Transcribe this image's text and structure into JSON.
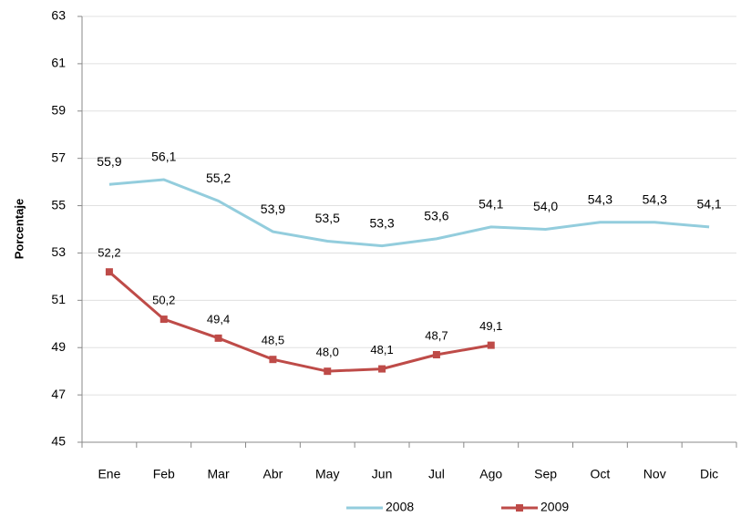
{
  "chart_data": {
    "type": "line",
    "y_label": "Porcentaje",
    "categories": [
      "Ene",
      "Feb",
      "Mar",
      "Abr",
      "May",
      "Jun",
      "Jul",
      "Ago",
      "Sep",
      "Oct",
      "Nov",
      "Dic"
    ],
    "series": [
      {
        "name": "2008",
        "color": "#93cddd",
        "marker": "none",
        "values": [
          55.9,
          56.1,
          55.2,
          53.9,
          53.5,
          53.3,
          53.6,
          54.1,
          54.0,
          54.3,
          54.3,
          54.1
        ],
        "value_labels": [
          "55,9",
          "56,1",
          "55,2",
          "53,9",
          "53,5",
          "53,3",
          "53,6",
          "54,1",
          "54,0",
          "54,3",
          "54,3",
          "54,1"
        ]
      },
      {
        "name": "2009",
        "color": "#be4b48",
        "marker": "square",
        "values": [
          52.2,
          50.2,
          49.4,
          48.5,
          48.0,
          48.1,
          48.7,
          49.1,
          null,
          null,
          null,
          null
        ],
        "value_labels": [
          "52,2",
          "50,2",
          "49,4",
          "48,5",
          "48,0",
          "48,1",
          "48,7",
          "49,1",
          null,
          null,
          null,
          null
        ]
      }
    ],
    "ylim": [
      45,
      63
    ],
    "yticks": [
      45,
      47,
      49,
      51,
      53,
      55,
      57,
      59,
      61,
      63
    ],
    "grid": true,
    "legend": "bottom"
  }
}
